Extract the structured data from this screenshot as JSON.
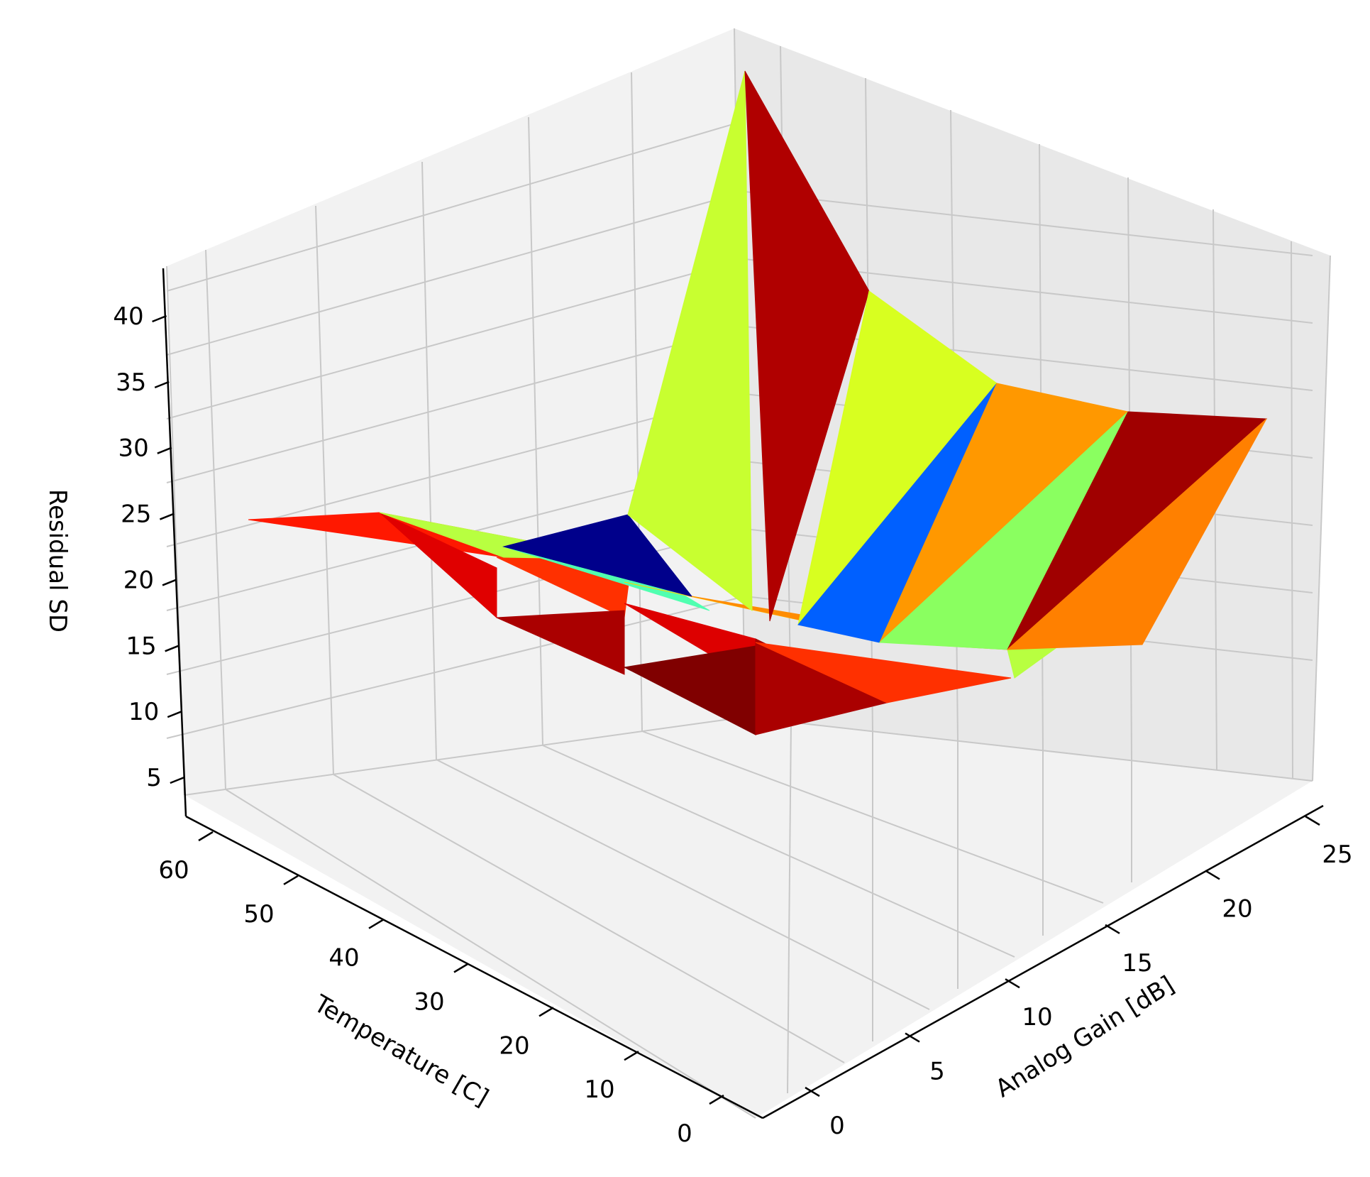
{
  "chart_data": {
    "type": "surface3d",
    "xlabel": "Analog Gain [dB]",
    "ylabel": "Temperature [C]",
    "zlabel": "Residual SD",
    "xticks": [
      "0",
      "5",
      "10",
      "15",
      "20",
      "25"
    ],
    "yticks": [
      "0",
      "10",
      "20",
      "30",
      "40",
      "50",
      "60"
    ],
    "zticks": [
      "5",
      "10",
      "15",
      "20",
      "25",
      "30",
      "35",
      "40"
    ],
    "xlim": [
      0,
      25
    ],
    "ylim": [
      0,
      60
    ],
    "zlim": [
      5,
      40
    ],
    "grid": true,
    "colormap": "jet",
    "facets": [
      {
        "color": "#ff1800",
        "z": 21.5
      },
      {
        "color": "#ff6a00",
        "z": 22.5
      },
      {
        "color": "#e00000",
        "z": 19.5
      },
      {
        "color": "#ff3000",
        "z": 20.5
      },
      {
        "color": "#aa0000",
        "z": 17.5
      },
      {
        "color": "#dd0000",
        "z": 18.5
      },
      {
        "color": "#800000",
        "z": 15.5
      },
      {
        "color": "#aa0000",
        "z": 16.0
      },
      {
        "color": "#ff3000",
        "z": 15.0
      },
      {
        "color": "#b8ff40",
        "z": 20.5
      },
      {
        "color": "#50ffb0",
        "z": 20.0
      },
      {
        "color": "#ffd000",
        "z": 18.5
      },
      {
        "color": "#00008b",
        "z": 20.5
      },
      {
        "color": "#ff8c00",
        "z": 17.5
      },
      {
        "color": "#ff8c00",
        "z": 16.5
      },
      {
        "color": "#b8ff40",
        "z": 15.5
      },
      {
        "color": "#c8ff30",
        "z": 30.0
      },
      {
        "color": "#b00000",
        "z": 32.0
      },
      {
        "color": "#d8ff20",
        "z": 27.0
      },
      {
        "color": "#0060ff",
        "z": 23.5
      },
      {
        "color": "#ff9800",
        "z": 26.0
      },
      {
        "color": "#8aff60",
        "z": 22.0
      },
      {
        "color": "#a00000",
        "z": 24.5
      },
      {
        "color": "#ff8000",
        "z": 22.0
      }
    ]
  }
}
